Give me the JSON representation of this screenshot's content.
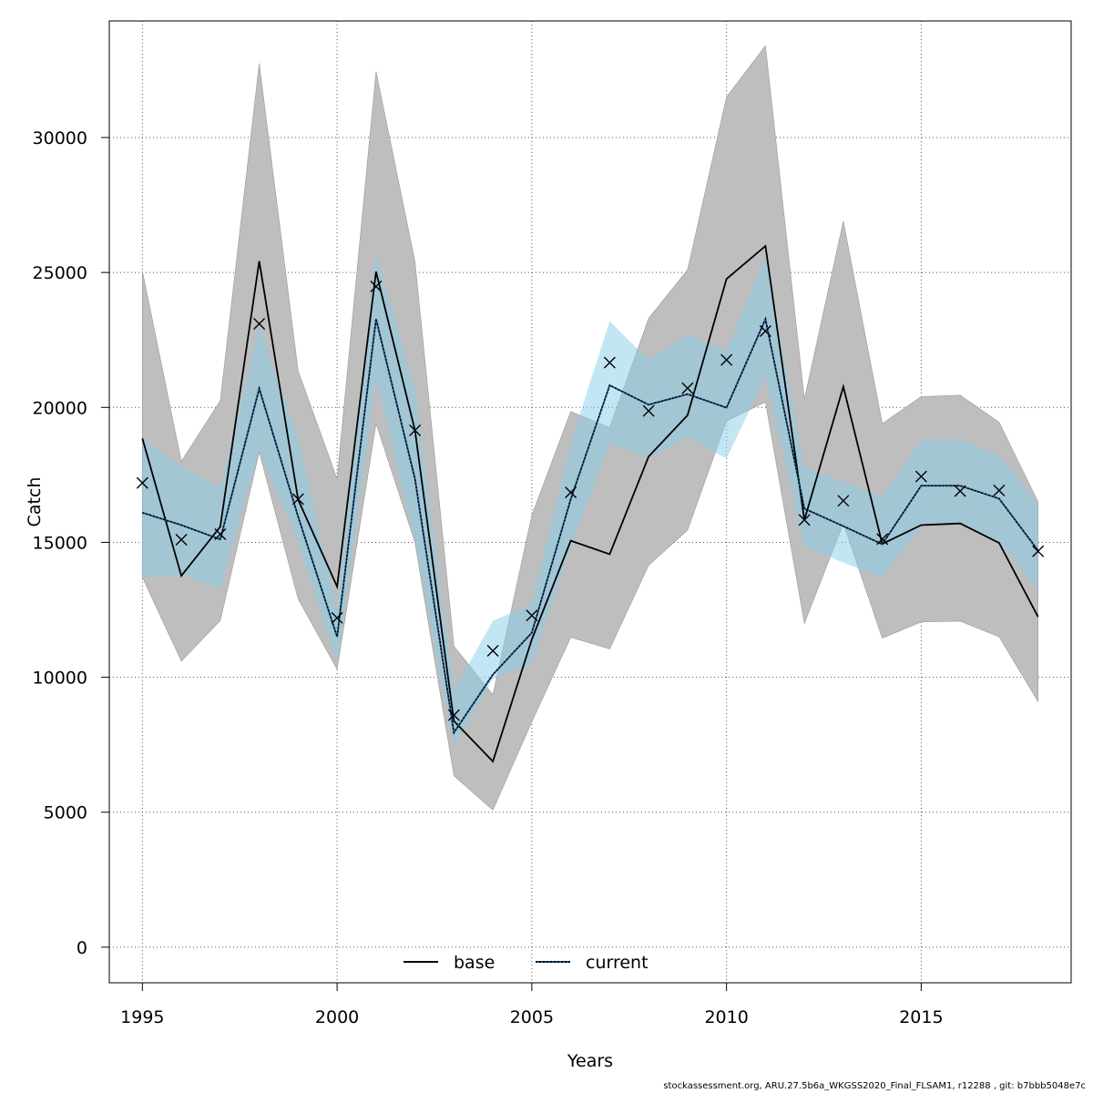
{
  "chart_data": {
    "type": "line",
    "xlabel": "Years",
    "ylabel": "Catch",
    "xlim": [
      1994.15,
      2018.85
    ],
    "ylim": [
      -1320,
      34320
    ],
    "xticks": [
      1995,
      2000,
      2005,
      2010,
      2015
    ],
    "yticks": [
      0,
      5000,
      10000,
      15000,
      20000,
      25000,
      30000
    ],
    "grid": true,
    "legend_position": "bottom-center",
    "x": [
      1995,
      1996,
      1997,
      1998,
      1999,
      2000,
      2001,
      2002,
      2003,
      2004,
      2005,
      2006,
      2007,
      2008,
      2009,
      2010,
      2011,
      2012,
      2013,
      2014,
      2015,
      2016,
      2017,
      2018
    ],
    "series": [
      {
        "name": "base",
        "line_color": "#000000",
        "line_style": "solid",
        "band_color": "#bebebe",
        "values": [
          18850,
          13760,
          15580,
          25420,
          16580,
          13360,
          25030,
          19150,
          8380,
          6880,
          11400,
          15060,
          14560,
          18180,
          19710,
          24760,
          25980,
          15830,
          20770,
          14940,
          15640,
          15700,
          14980,
          12240
        ],
        "lower": [
          13700,
          10600,
          12100,
          18350,
          12900,
          10300,
          19400,
          15000,
          6350,
          5080,
          8350,
          11480,
          11050,
          14150,
          15450,
          19500,
          20200,
          12000,
          15700,
          11450,
          12050,
          12080,
          11500,
          9100
        ],
        "upper": [
          25050,
          18000,
          20250,
          32750,
          21350,
          17350,
          32450,
          25400,
          11150,
          9350,
          16000,
          19850,
          19250,
          23300,
          25100,
          31500,
          33400,
          20300,
          26900,
          19400,
          20400,
          20450,
          19450,
          16500
        ]
      },
      {
        "name": "current",
        "line_color": "#0b4f86",
        "line_style": "dotted",
        "band_color": "#87ceeb",
        "values": [
          16100,
          15640,
          15110,
          20700,
          15950,
          11500,
          23280,
          17350,
          7950,
          10100,
          11650,
          16600,
          20820,
          20100,
          20490,
          19990,
          23270,
          16250,
          15600,
          14930,
          17100,
          17100,
          16620,
          14700
        ],
        "lower": [
          13700,
          13800,
          13300,
          18350,
          15000,
          10500,
          21100,
          15050,
          7450,
          9950,
          10500,
          14850,
          18650,
          18150,
          18900,
          18100,
          21150,
          14850,
          14250,
          13700,
          15650,
          15650,
          15050,
          13250
        ],
        "upper": [
          18850,
          17800,
          17050,
          23000,
          18850,
          12500,
          25750,
          20650,
          9500,
          12100,
          12700,
          18700,
          23200,
          21750,
          22700,
          22100,
          25600,
          17800,
          17250,
          16700,
          18800,
          18800,
          18250,
          16450
        ]
      }
    ],
    "observations": {
      "marker": "x",
      "values": [
        17200,
        15100,
        15300,
        23100,
        16600,
        12200,
        24480,
        19150,
        8600,
        10980,
        12290,
        16850,
        21660,
        19870,
        20710,
        21760,
        22830,
        15830,
        16540,
        15120,
        17440,
        16900,
        16920,
        14670
      ]
    }
  },
  "footer_text": "stockassessment.org, ARU.27.5b6a_WKGSS2020_Final_FLSAM1, r12288 , git: b7bbb5048e7c"
}
